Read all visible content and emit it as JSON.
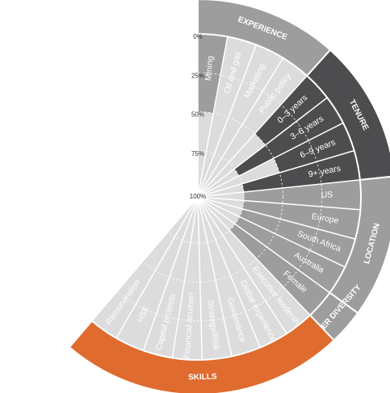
{
  "chart_data": {
    "type": "radial-bar",
    "scale": {
      "direction": "value 100% at centre, 0% at outer edge",
      "ticks": [
        "0%",
        "25%",
        "50%",
        "75%",
        "100%"
      ]
    },
    "groups": [
      {
        "name": "EXPERIENCE",
        "color": "#9d9d9e",
        "items": [
          {
            "label": "Mining",
            "value": 50
          },
          {
            "label": "Oil and gas",
            "value": 0
          },
          {
            "label": "Marketing",
            "value": 0
          },
          {
            "label": "Public policy",
            "value": 0
          }
        ]
      },
      {
        "name": "TENURE",
        "color": "#4d4d4f",
        "items": [
          {
            "label": "0–3 years",
            "value": 50
          },
          {
            "label": "3–6 years",
            "value": 75
          },
          {
            "label": "6–9 years",
            "value": 50
          },
          {
            "label": "9+ years",
            "value": 75
          }
        ]
      },
      {
        "name": "LOCATION",
        "color": "#9d9d9e",
        "items": [
          {
            "label": "US",
            "value": 75
          },
          {
            "label": "Europe",
            "value": 75
          },
          {
            "label": "South Africa",
            "value": 75
          },
          {
            "label": "Australia",
            "value": 75
          }
        ]
      },
      {
        "name": "GENDER DIVERSITY",
        "color": "#9d9d9e",
        "items": [
          {
            "label": "Female",
            "value": 75
          }
        ]
      },
      {
        "name": "SKILLS",
        "color": "#e06b2e",
        "items": [
          {
            "label": "Executive leadership",
            "value": 0
          },
          {
            "label": "Global experience",
            "value": 0
          },
          {
            "label": "Governance",
            "value": 0
          },
          {
            "label": "Strategy/Risk",
            "value": 0
          },
          {
            "label": "Financial acumen",
            "value": 0
          },
          {
            "label": "Capital projects",
            "value": 0
          },
          {
            "label": "HSE",
            "value": 0
          },
          {
            "label": "Remuneration",
            "value": 0
          }
        ]
      }
    ]
  }
}
